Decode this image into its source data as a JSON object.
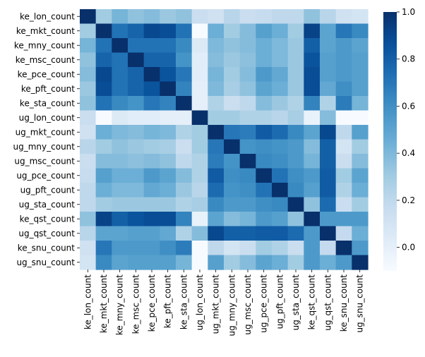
{
  "chart_data": {
    "type": "heatmap",
    "title": "",
    "xlabel": "",
    "ylabel": "",
    "colormap": "Blues",
    "color_low": "#f7fbff",
    "color_high": "#08306b",
    "vmin": -0.1,
    "vmax": 1.0,
    "colorbar_ticks": [
      "1.0",
      "0.8",
      "0.6",
      "0.4",
      "0.2",
      "0.0"
    ],
    "colorbar_tick_values": [
      1.0,
      0.8,
      0.6,
      0.4,
      0.2,
      0.0
    ],
    "rows": [
      "ke_lon_count",
      "ke_mkt_count",
      "ke_mny_count",
      "ke_msc_count",
      "ke_pce_count",
      "ke_pft_count",
      "ke_sta_count",
      "ug_lon_count",
      "ug_mkt_count",
      "ug_mny_count",
      "ug_msc_count",
      "ug_pce_count",
      "ug_pft_count",
      "ug_sta_count",
      "ke_qst_count",
      "ug_qst_count",
      "ke_snu_count",
      "ug_snu_count"
    ],
    "columns": [
      "ke_lon_count",
      "ke_mkt_count",
      "ke_mny_count",
      "ke_msc_count",
      "ke_pce_count",
      "ke_pft_count",
      "ke_sta_count",
      "ug_lon_count",
      "ug_mkt_count",
      "ug_mny_count",
      "ug_msc_count",
      "ug_pce_count",
      "ug_pft_count",
      "ug_sta_count",
      "ke_qst_count",
      "ug_qst_count",
      "ke_snu_count",
      "ug_snu_count"
    ],
    "values": [
      [
        1.0,
        0.3,
        0.42,
        0.35,
        0.38,
        0.32,
        0.35,
        0.15,
        0.12,
        0.22,
        0.15,
        0.17,
        0.2,
        0.2,
        0.35,
        0.22,
        0.12,
        0.1
      ],
      [
        0.3,
        1.0,
        0.72,
        0.78,
        0.9,
        0.88,
        0.72,
        -0.1,
        0.45,
        0.3,
        0.38,
        0.52,
        0.45,
        0.3,
        0.92,
        0.5,
        0.7,
        0.62
      ],
      [
        0.42,
        0.72,
        1.0,
        0.72,
        0.72,
        0.72,
        0.62,
        0.05,
        0.4,
        0.35,
        0.38,
        0.45,
        0.4,
        0.32,
        0.8,
        0.5,
        0.55,
        0.5
      ],
      [
        0.35,
        0.78,
        0.72,
        1.0,
        0.78,
        0.78,
        0.58,
        0.02,
        0.38,
        0.32,
        0.36,
        0.45,
        0.4,
        0.32,
        0.85,
        0.52,
        0.55,
        0.52
      ],
      [
        0.38,
        0.9,
        0.72,
        0.78,
        1.0,
        0.85,
        0.7,
        0.02,
        0.42,
        0.3,
        0.38,
        0.55,
        0.48,
        0.32,
        0.88,
        0.52,
        0.55,
        0.52
      ],
      [
        0.32,
        0.88,
        0.72,
        0.78,
        0.85,
        1.0,
        0.65,
        0.0,
        0.4,
        0.28,
        0.35,
        0.5,
        0.45,
        0.32,
        0.88,
        0.48,
        0.6,
        0.52
      ],
      [
        0.35,
        0.72,
        0.62,
        0.58,
        0.7,
        0.65,
        1.0,
        0.0,
        0.25,
        0.15,
        0.2,
        0.38,
        0.32,
        0.25,
        0.65,
        0.25,
        0.68,
        0.42
      ],
      [
        0.15,
        -0.1,
        0.05,
        0.02,
        0.02,
        0.0,
        0.0,
        1.0,
        0.3,
        0.3,
        0.25,
        0.25,
        0.22,
        0.28,
        -0.02,
        0.38,
        -0.1,
        -0.1
      ],
      [
        0.12,
        0.45,
        0.4,
        0.38,
        0.42,
        0.4,
        0.25,
        0.3,
        1.0,
        0.7,
        0.68,
        0.82,
        0.75,
        0.62,
        0.5,
        0.9,
        0.2,
        0.52
      ],
      [
        0.22,
        0.3,
        0.35,
        0.32,
        0.3,
        0.28,
        0.15,
        0.3,
        0.7,
        1.0,
        0.58,
        0.6,
        0.58,
        0.55,
        0.38,
        0.8,
        0.1,
        0.3
      ],
      [
        0.15,
        0.38,
        0.38,
        0.36,
        0.38,
        0.35,
        0.2,
        0.25,
        0.68,
        0.58,
        1.0,
        0.62,
        0.6,
        0.55,
        0.42,
        0.8,
        0.15,
        0.38
      ],
      [
        0.17,
        0.52,
        0.45,
        0.45,
        0.55,
        0.5,
        0.38,
        0.25,
        0.82,
        0.6,
        0.62,
        1.0,
        0.72,
        0.6,
        0.55,
        0.82,
        0.3,
        0.5
      ],
      [
        0.2,
        0.45,
        0.4,
        0.4,
        0.48,
        0.45,
        0.32,
        0.22,
        0.75,
        0.58,
        0.6,
        0.72,
        1.0,
        0.62,
        0.52,
        0.82,
        0.25,
        0.45
      ],
      [
        0.2,
        0.3,
        0.32,
        0.32,
        0.32,
        0.32,
        0.25,
        0.28,
        0.62,
        0.55,
        0.55,
        0.6,
        0.62,
        1.0,
        0.35,
        0.75,
        0.15,
        0.3
      ],
      [
        0.35,
        0.92,
        0.8,
        0.85,
        0.88,
        0.88,
        0.65,
        -0.02,
        0.5,
        0.38,
        0.42,
        0.55,
        0.52,
        0.35,
        1.0,
        0.55,
        0.55,
        0.55
      ],
      [
        0.22,
        0.5,
        0.5,
        0.52,
        0.52,
        0.48,
        0.25,
        0.38,
        0.9,
        0.8,
        0.8,
        0.82,
        0.82,
        0.75,
        0.55,
        1.0,
        0.18,
        0.45
      ],
      [
        0.12,
        0.7,
        0.55,
        0.55,
        0.55,
        0.6,
        0.68,
        -0.1,
        0.2,
        0.1,
        0.15,
        0.3,
        0.25,
        0.15,
        0.55,
        0.18,
        1.0,
        0.55
      ],
      [
        0.1,
        0.62,
        0.5,
        0.52,
        0.52,
        0.52,
        0.42,
        -0.1,
        0.52,
        0.3,
        0.38,
        0.5,
        0.45,
        0.3,
        0.55,
        0.45,
        0.55,
        1.0
      ]
    ]
  }
}
